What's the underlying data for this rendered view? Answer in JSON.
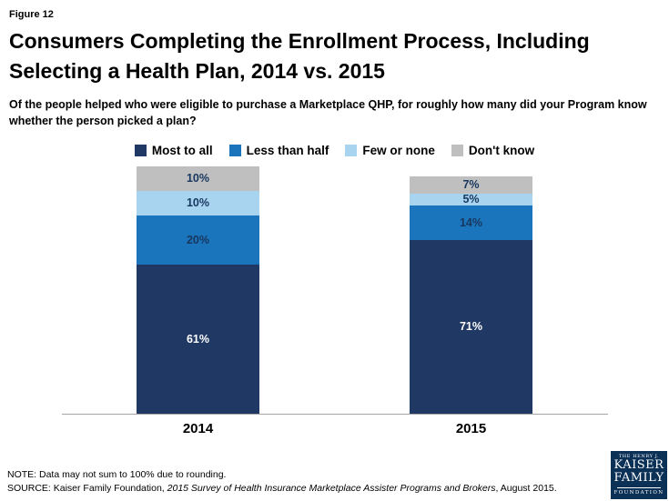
{
  "figure_label": "Figure 12",
  "title": "Consumers Completing the Enrollment Process, Including Selecting a Health Plan, 2014 vs. 2015",
  "subtitle": "Of the people helped who were eligible to purchase a Marketplace QHP, for roughly how many did your Program know whether the person picked a plan?",
  "note": "NOTE: Data may not sum to 100% due to rounding.",
  "source_prefix": "SOURCE: Kaiser Family Foundation, ",
  "source_italic": "2015 Survey of Health Insurance Marketplace Assister Programs and Brokers",
  "source_suffix": ", August 2015.",
  "logo": {
    "line1": "THE HENRY J.",
    "line2": "KAISER",
    "line3": "FAMILY",
    "line4": "FOUNDATION"
  },
  "chart_data": {
    "type": "bar",
    "stacked": true,
    "title": "Consumers Completing the Enrollment Process, Including Selecting a Health Plan, 2014 vs. 2015",
    "xlabel": "",
    "ylabel": "",
    "categories": [
      "2014",
      "2015"
    ],
    "series": [
      {
        "name": "Most to all",
        "color": "#1F3864",
        "label_color": "#FFFFFF",
        "values": [
          61,
          71
        ]
      },
      {
        "name": "Less than half",
        "color": "#1B75BC",
        "label_color": "#17375E",
        "values": [
          20,
          14
        ]
      },
      {
        "name": "Few or none",
        "color": "#A8D4F0",
        "label_color": "#17375E",
        "values": [
          10,
          5
        ]
      },
      {
        "name": "Don't know",
        "color": "#BFBFBF",
        "label_color": "#17375E",
        "values": [
          10,
          7
        ]
      }
    ],
    "value_suffix": "%",
    "ylim": [
      0,
      100
    ],
    "grid": false,
    "legend_position": "top"
  }
}
